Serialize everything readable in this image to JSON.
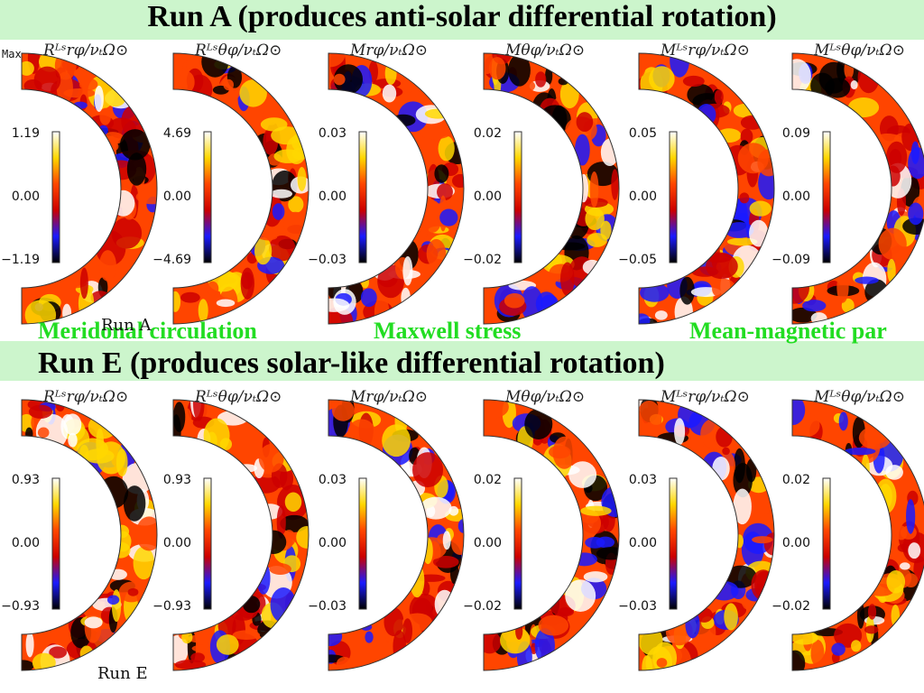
{
  "title_a": "Run A (produces anti-solar differential rotation)",
  "title_e": "Run E (produces solar-like differential rotation)",
  "max_label": "Max",
  "section_labels": {
    "meridional": "Meridonal circulation",
    "maxwell": "Maxwell stress",
    "mean_magnetic": "Mean-magnetic par"
  },
  "run_a_label": "Run A",
  "run_e_label": "Run E",
  "panel_titles": [
    "Rᴸˢrφ/νₜΩ⊙",
    "Rᴸˢθφ/νₜΩ⊙",
    "Mrφ/νₜΩ⊙",
    "Mθφ/νₜΩ⊙",
    "Mᴸˢrφ/νₜΩ⊙",
    "Mᴸˢθφ/νₜΩ⊙"
  ],
  "run_a_scales": [
    {
      "top": "1.19",
      "mid": "0.00",
      "bot": "−1.19"
    },
    {
      "top": "4.69",
      "mid": "0.00",
      "bot": "−4.69"
    },
    {
      "top": "0.03",
      "mid": "0.00",
      "bot": "−0.03"
    },
    {
      "top": "0.02",
      "mid": "0.00",
      "bot": "−0.02"
    },
    {
      "top": "0.05",
      "mid": "0.00",
      "bot": "−0.05"
    },
    {
      "top": "0.09",
      "mid": "0.00",
      "bot": "−0.09"
    }
  ],
  "run_e_scales": [
    {
      "top": "0.93",
      "mid": "0.00",
      "bot": "−0.93"
    },
    {
      "top": "0.93",
      "mid": "0.00",
      "bot": "−0.93"
    },
    {
      "top": "0.03",
      "mid": "0.00",
      "bot": "−0.03"
    },
    {
      "top": "0.02",
      "mid": "0.00",
      "bot": "−0.02"
    },
    {
      "top": "0.03",
      "mid": "0.00",
      "bot": "−0.03"
    },
    {
      "top": "0.02",
      "mid": "0.00",
      "bot": "−0.02"
    }
  ],
  "colors": {
    "band": "#ccf5cc",
    "section_label": "#22dd22",
    "colormap": [
      "#000000",
      "#1a1aff",
      "#cc0000",
      "#ff4500",
      "#ffd700",
      "#ffffff"
    ]
  }
}
